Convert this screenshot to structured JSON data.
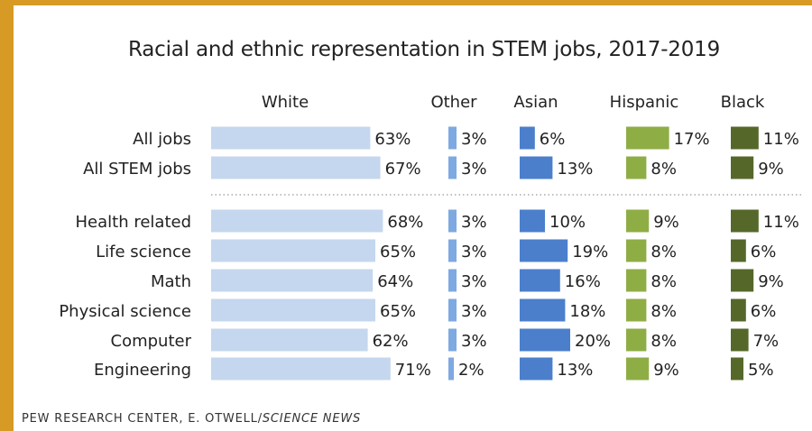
{
  "chart_data": {
    "type": "bar",
    "title": "Racial and ethnic representation in STEM jobs, 2017-2019",
    "categories": [
      "All jobs",
      "All STEM jobs",
      "Health related",
      "Life science",
      "Math",
      "Physical science",
      "Computer",
      "Engineering"
    ],
    "series": [
      {
        "name": "White",
        "values": [
          63,
          67,
          68,
          65,
          64,
          65,
          62,
          71
        ],
        "color": "#c5d7ee"
      },
      {
        "name": "Other",
        "values": [
          3,
          3,
          3,
          3,
          3,
          3,
          3,
          2
        ],
        "color": "#7ea9e1"
      },
      {
        "name": "Asian",
        "values": [
          6,
          13,
          10,
          19,
          16,
          18,
          20,
          13
        ],
        "color": "#4b7fcc"
      },
      {
        "name": "Hispanic",
        "values": [
          17,
          8,
          9,
          8,
          8,
          8,
          8,
          9
        ],
        "color": "#8fad45"
      },
      {
        "name": "Black",
        "values": [
          11,
          9,
          11,
          6,
          9,
          6,
          7,
          5
        ],
        "color": "#55682a"
      }
    ],
    "value_suffix": "%",
    "groups": [
      [
        "All jobs",
        "All STEM jobs"
      ],
      [
        "Health related",
        "Life science",
        "Math",
        "Physical science",
        "Computer",
        "Engineering"
      ]
    ],
    "legend": "column headers above each series",
    "grid": false
  },
  "footer": {
    "source": "PEW RESEARCH CENTER, E. OTWELL/",
    "source_italic": "SCIENCE NEWS"
  }
}
